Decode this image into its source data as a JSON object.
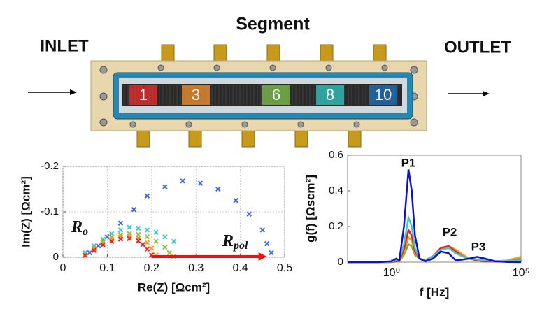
{
  "diagram": {
    "title": "Segment",
    "inlet": "INLET",
    "outlet": "OUTLET",
    "segments": [
      {
        "label": "1",
        "color": "#c0282a"
      },
      {
        "label": "3",
        "color": "#c87a2a"
      },
      {
        "label": "6",
        "color": "#6aa041"
      },
      {
        "label": "8",
        "color": "#2aa5a0"
      },
      {
        "label": "10",
        "color": "#1f5f9a"
      }
    ]
  },
  "chart_data": [
    {
      "type": "scatter",
      "xlabel": "Re(Z) [Ωcm²]",
      "ylabel": "Im(Z) [Ωcm²]",
      "xlim": [
        0,
        0.5
      ],
      "ylim": [
        0,
        -0.2
      ],
      "xticks": [
        0,
        0.1,
        0.2,
        0.3,
        0.4,
        0.5
      ],
      "yticks": [
        0,
        -0.1,
        -0.2
      ],
      "grid": true,
      "ro": {
        "text": "R",
        "sub": "o"
      },
      "rpol": {
        "text": "R",
        "sub": "pol",
        "from": 0.2,
        "to": 0.46,
        "color": "#ee1111"
      },
      "series": [
        {
          "color": "#4169e1",
          "x": [
            0.06,
            0.08,
            0.1,
            0.13,
            0.16,
            0.19,
            0.23,
            0.27,
            0.31,
            0.35,
            0.39,
            0.42,
            0.45,
            0.46,
            0.47
          ],
          "values": [
            -0.01,
            -0.025,
            -0.045,
            -0.075,
            -0.105,
            -0.135,
            -0.155,
            -0.168,
            -0.163,
            -0.15,
            -0.125,
            -0.095,
            -0.06,
            -0.03,
            -0.01
          ]
        },
        {
          "color": "#40c8c8",
          "x": [
            0.05,
            0.07,
            0.09,
            0.11,
            0.13,
            0.15,
            0.17,
            0.19,
            0.21,
            0.23,
            0.25
          ],
          "values": [
            -0.01,
            -0.025,
            -0.04,
            -0.052,
            -0.06,
            -0.066,
            -0.064,
            -0.06,
            -0.055,
            -0.045,
            -0.035
          ]
        },
        {
          "color": "#8bc34a",
          "x": [
            0.05,
            0.07,
            0.09,
            0.11,
            0.13,
            0.15,
            0.17,
            0.19,
            0.21,
            0.23,
            0.24,
            0.25
          ],
          "values": [
            -0.005,
            -0.02,
            -0.035,
            -0.045,
            -0.05,
            -0.052,
            -0.05,
            -0.045,
            -0.035,
            -0.022,
            -0.01,
            -0.002
          ]
        },
        {
          "color": "#f0a020",
          "x": [
            0.05,
            0.07,
            0.09,
            0.11,
            0.13,
            0.15,
            0.17,
            0.19,
            0.2,
            0.21
          ],
          "values": [
            -0.005,
            -0.018,
            -0.03,
            -0.04,
            -0.045,
            -0.046,
            -0.042,
            -0.032,
            -0.02,
            -0.005
          ]
        },
        {
          "color": "#ee2222",
          "x": [
            0.05,
            0.07,
            0.09,
            0.11,
            0.13,
            0.15,
            0.17,
            0.18,
            0.19,
            0.2
          ],
          "values": [
            -0.004,
            -0.015,
            -0.027,
            -0.035,
            -0.04,
            -0.041,
            -0.036,
            -0.028,
            -0.018,
            -0.005
          ]
        }
      ]
    },
    {
      "type": "line",
      "xlabel": "f [Hz]",
      "ylabel": "g(f) [Ωscm²]",
      "xscale": "log",
      "xlim": [
        0.02,
        100000
      ],
      "ylim": [
        0,
        0.6
      ],
      "xticks": [
        {
          "value": 1,
          "label": "10⁰"
        },
        {
          "value": 100000,
          "label": "10⁵"
        }
      ],
      "yticks": [
        0,
        0.2,
        0.4,
        0.6
      ],
      "grid": false,
      "annotations": [
        "P1",
        "P2",
        "P3"
      ],
      "x": [
        0.02,
        0.3,
        1,
        1.5,
        2,
        3,
        4.5,
        6,
        8,
        12,
        20,
        40,
        80,
        160,
        300,
        600,
        1000,
        2000,
        4000,
        10000,
        30000,
        100000
      ],
      "series": [
        {
          "color": "#7aaa30",
          "values": [
            0,
            0,
            0,
            0.003,
            0.005,
            0.04,
            0.1,
            0.09,
            0.04,
            0.02,
            0.01,
            0.035,
            0.075,
            0.09,
            0.07,
            0.04,
            0.02,
            0.01,
            0.005,
            0.004,
            0.008,
            0.02
          ]
        },
        {
          "color": "#f0a020",
          "values": [
            0,
            0,
            0,
            0.004,
            0.006,
            0.05,
            0.14,
            0.12,
            0.05,
            0.02,
            0.01,
            0.035,
            0.08,
            0.09,
            0.07,
            0.04,
            0.02,
            0.01,
            0.005,
            0.005,
            0.01,
            0.03
          ]
        },
        {
          "color": "#e82020",
          "values": [
            0,
            0,
            0.001,
            0.005,
            0.008,
            0.07,
            0.18,
            0.15,
            0.06,
            0.02,
            0.01,
            0.03,
            0.08,
            0.09,
            0.06,
            0.03,
            0.02,
            0.01,
            0.005,
            0.003,
            0.005,
            0.01
          ]
        },
        {
          "color": "#40c8c8",
          "values": [
            0,
            0,
            0.002,
            0.01,
            0.01,
            0.1,
            0.25,
            0.2,
            0.08,
            0.02,
            0.01,
            0.03,
            0.07,
            0.08,
            0.05,
            0.03,
            0.02,
            0.015,
            0.01,
            0.005,
            0.005,
            0.01
          ]
        },
        {
          "color": "#1010d0",
          "values": [
            0,
            0,
            0.005,
            0.02,
            0.01,
            0.2,
            0.52,
            0.4,
            0.15,
            0.02,
            0.005,
            0.02,
            0.06,
            0.05,
            0.01,
            0.015,
            0.02,
            0.03,
            0.02,
            0.005,
            0.001,
            0
          ]
        }
      ]
    }
  ]
}
